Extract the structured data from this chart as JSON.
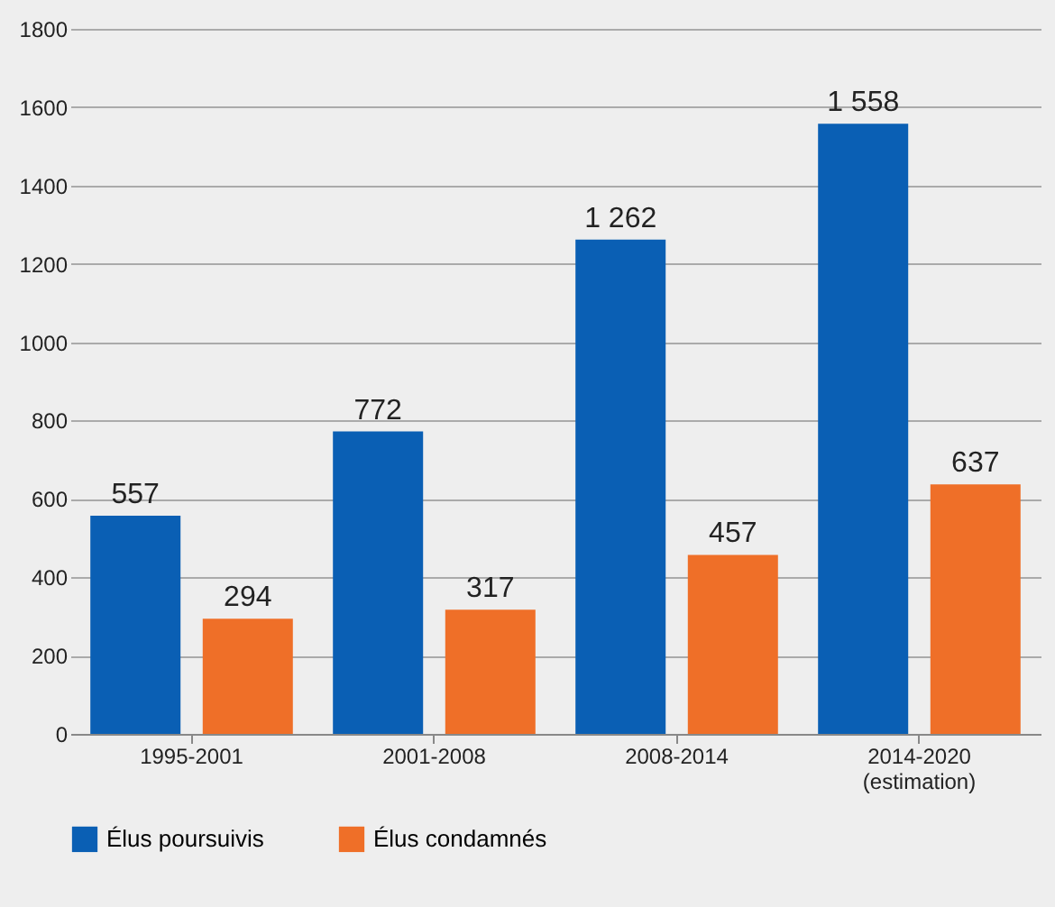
{
  "chart_data": {
    "type": "bar",
    "categories": [
      "1995-2001",
      "2001-2008",
      "2008-2014",
      "2014-2020 (estimation)"
    ],
    "series": [
      {
        "name": "Élus poursuivis",
        "color": "#0a5fb4",
        "values": [
          557,
          772,
          1262,
          1558
        ],
        "value_labels": [
          "557",
          "772",
          "1 262",
          "1 558"
        ]
      },
      {
        "name": "Élus condamnés",
        "color": "#ef6f28",
        "values": [
          294,
          317,
          457,
          637
        ],
        "value_labels": [
          "294",
          "317",
          "457",
          "637"
        ]
      }
    ],
    "ylim": [
      0,
      1800
    ],
    "yticks": [
      0,
      200,
      400,
      600,
      800,
      1000,
      1200,
      1400,
      1600,
      1800
    ],
    "grid": "y",
    "legend": "bottom"
  }
}
